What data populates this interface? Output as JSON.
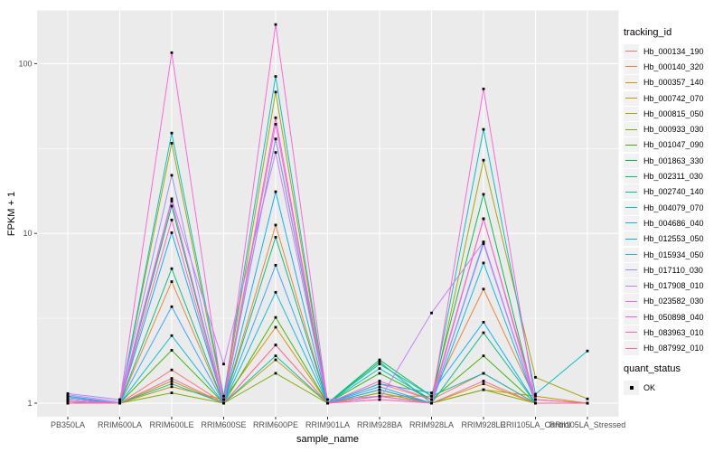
{
  "figure": {
    "x_axis_title": "sample_name",
    "y_axis_title": "FPKM + 1",
    "legend_tracking_title": "tracking_id",
    "legend_quant_title": "quant_status",
    "quant_ok_label": "OK"
  },
  "chart_data": {
    "type": "line",
    "title": "",
    "xlabel": "sample_name",
    "ylabel": "FPKM + 1",
    "y_scale": "log10",
    "ylim": [
      0.83,
      205
    ],
    "y_ticks": [
      1,
      10,
      100
    ],
    "y_minor_ticks": [
      3.162,
      31.623
    ],
    "grid": true,
    "legend_position": "right",
    "legend_title": "tracking_id",
    "panel_background": "#EBEBEB",
    "gridline_color": "#FFFFFF",
    "point_color": "#000000",
    "point_shape": "square",
    "quant_status": {
      "title": "quant_status",
      "values": [
        "OK"
      ]
    },
    "categories": [
      "PB350LA",
      "RRIM600LA",
      "RRIM600LE",
      "RRIM600SE",
      "RRIM600PE",
      "RRIM901LA",
      "RRIM928BA",
      "RRIM928LA",
      "RRIM928LE",
      "RRII105LA_Control",
      "RRII105LA_Stressed"
    ],
    "series": [
      {
        "name": "Hb_000134_190",
        "color": "#F8766D",
        "values": [
          1.05,
          1.0,
          1.57,
          1.0,
          2.2,
          1.0,
          1.3,
          1.05,
          1.5,
          1.0,
          1.0
        ]
      },
      {
        "name": "Hb_000140_320",
        "color": "#EA8331",
        "values": [
          1.02,
          1.0,
          5.2,
          1.0,
          11.2,
          1.0,
          1.1,
          1.1,
          4.7,
          1.05,
          1.0
        ]
      },
      {
        "name": "Hb_000357_140",
        "color": "#D89000",
        "values": [
          1.1,
          1.0,
          1.25,
          1.05,
          2.8,
          1.0,
          1.2,
          1.0,
          1.3,
          1.0,
          1.0
        ]
      },
      {
        "name": "Hb_000742_070",
        "color": "#C09B00",
        "values": [
          1.05,
          1.0,
          1.35,
          1.0,
          1.8,
          1.0,
          1.15,
          1.0,
          1.2,
          1.1,
          1.0
        ]
      },
      {
        "name": "Hb_000815_050",
        "color": "#A3A500",
        "values": [
          1.02,
          1.0,
          34.0,
          1.05,
          68.0,
          1.0,
          1.15,
          1.0,
          27.0,
          1.42,
          1.06
        ]
      },
      {
        "name": "Hb_000933_030",
        "color": "#7CAE00",
        "values": [
          1.0,
          1.0,
          1.15,
          1.0,
          1.5,
          1.0,
          1.1,
          1.0,
          1.2,
          1.0,
          1.0
        ]
      },
      {
        "name": "Hb_001047_090",
        "color": "#39B600",
        "values": [
          1.0,
          1.0,
          2.05,
          1.0,
          3.2,
          1.0,
          1.5,
          1.05,
          1.9,
          1.0,
          1.0
        ]
      },
      {
        "name": "Hb_001863_330",
        "color": "#00BB4E",
        "values": [
          1.02,
          1.0,
          14.5,
          1.0,
          36.0,
          1.0,
          1.8,
          1.1,
          17.0,
          1.0,
          1.0
        ]
      },
      {
        "name": "Hb_002311_030",
        "color": "#00BF7D",
        "values": [
          1.0,
          1.0,
          6.2,
          1.0,
          9.5,
          1.0,
          1.75,
          1.0,
          2.6,
          1.0,
          1.0
        ]
      },
      {
        "name": "Hb_002740_140",
        "color": "#00C1A3",
        "values": [
          1.02,
          1.0,
          1.3,
          1.0,
          1.9,
          1.0,
          1.7,
          1.1,
          1.5,
          1.0,
          1.0
        ]
      },
      {
        "name": "Hb_004079_070",
        "color": "#00BFC4",
        "values": [
          1.05,
          1.0,
          39.0,
          1.1,
          84.0,
          1.0,
          1.6,
          1.05,
          41.0,
          1.13,
          2.03
        ]
      },
      {
        "name": "Hb_004686_040",
        "color": "#00BAE0",
        "values": [
          1.05,
          1.0,
          2.5,
          1.0,
          4.5,
          1.0,
          1.2,
          1.0,
          6.7,
          1.0,
          1.0
        ]
      },
      {
        "name": "Hb_012553_050",
        "color": "#00B0F6",
        "values": [
          1.08,
          1.0,
          10.1,
          1.0,
          17.6,
          1.0,
          1.3,
          1.15,
          3.0,
          1.0,
          1.0
        ]
      },
      {
        "name": "Hb_015934_050",
        "color": "#35A2FF",
        "values": [
          1.1,
          1.0,
          3.7,
          1.0,
          6.5,
          1.0,
          1.25,
          1.0,
          8.9,
          1.0,
          1.0
        ]
      },
      {
        "name": "Hb_017110_030",
        "color": "#9590FF",
        "values": [
          1.14,
          1.05,
          22.0,
          1.0,
          36.0,
          1.05,
          1.1,
          1.0,
          8.7,
          1.0,
          1.0
        ]
      },
      {
        "name": "Hb_017908_010",
        "color": "#C77CFF",
        "values": [
          1.12,
          1.02,
          16.0,
          1.7,
          30.0,
          1.0,
          1.05,
          3.4,
          8.9,
          1.0,
          1.0
        ]
      },
      {
        "name": "Hb_023582_030",
        "color": "#E76BF3",
        "values": [
          1.05,
          1.0,
          15.5,
          1.0,
          44.0,
          1.0,
          1.1,
          1.0,
          12.2,
          1.0,
          1.0
        ]
      },
      {
        "name": "Hb_050898_040",
        "color": "#FA62DB",
        "values": [
          1.02,
          1.0,
          116.0,
          1.0,
          170.0,
          1.0,
          1.1,
          1.0,
          71.0,
          1.0,
          1.0
        ]
      },
      {
        "name": "Hb_083963_010",
        "color": "#FF62BC",
        "values": [
          1.05,
          1.0,
          12.0,
          1.0,
          48.0,
          1.0,
          1.35,
          1.05,
          12.2,
          1.05,
          1.0
        ]
      },
      {
        "name": "Hb_087992_010",
        "color": "#FF6A98",
        "values": [
          1.0,
          1.0,
          1.4,
          1.0,
          2.2,
          1.0,
          1.05,
          1.0,
          1.35,
          1.0,
          1.0
        ]
      }
    ]
  }
}
